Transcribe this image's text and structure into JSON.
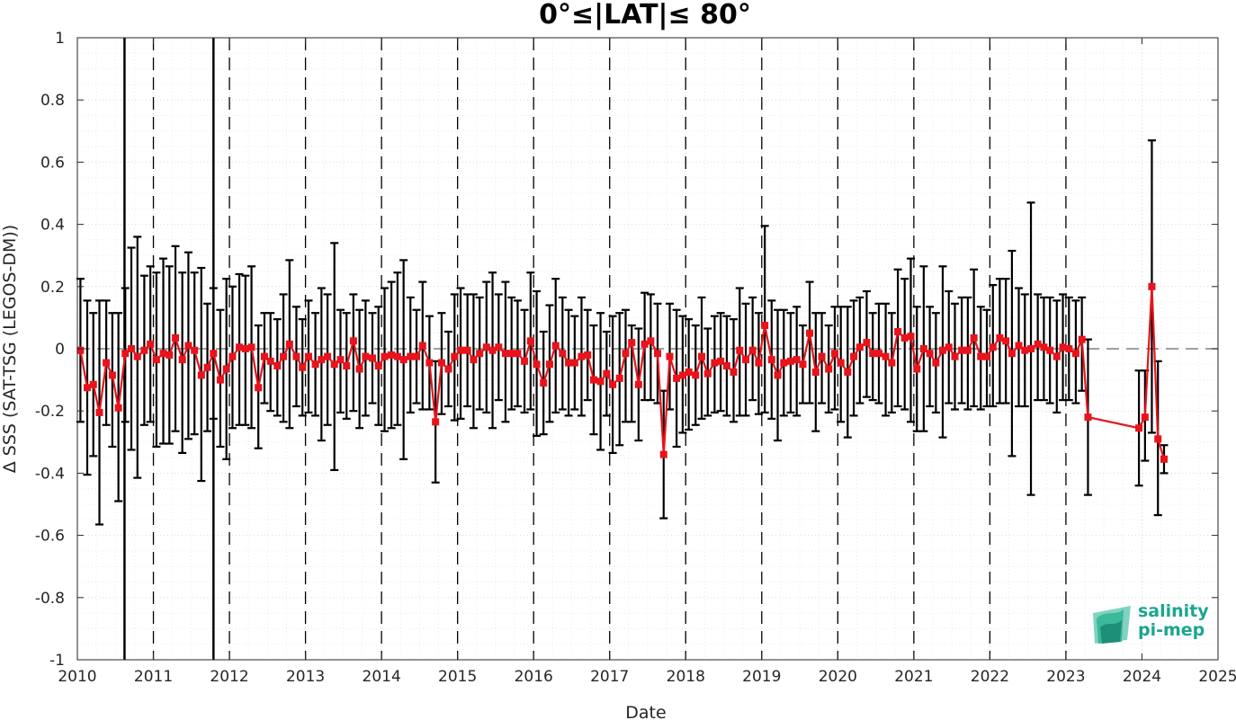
{
  "chart_data": {
    "type": "line",
    "title": "0°≤|LAT|≤ 80°",
    "xlabel": "Date",
    "ylabel": "Δ SSS (SAT-TSG (LEGOS-DM))",
    "xlim": [
      2010,
      2025
    ],
    "ylim": [
      -1,
      1
    ],
    "x_ticks": [
      "2010",
      "2011",
      "2012",
      "2013",
      "2014",
      "2015",
      "2016",
      "2017",
      "2018",
      "2019",
      "2020",
      "2021",
      "2022",
      "2023",
      "2024",
      "2025"
    ],
    "y_ticks": [
      "-1",
      "-0.8",
      "-0.6",
      "-0.4",
      "-0.2",
      "0",
      "0.2",
      "0.4",
      "0.6",
      "0.8",
      "1"
    ],
    "grid": true,
    "reference_line": 0,
    "solid_vertical_lines": [
      2010.62,
      2011.79
    ],
    "dashed_vertical_lines": [
      2011.0,
      2012.0,
      2013.0,
      2014.0,
      2015.0,
      2016.0,
      2017.0,
      2018.0,
      2019.0,
      2020.0,
      2021.0,
      2022.0,
      2023.0
    ],
    "colors": {
      "series": "#e8131b",
      "errorbar": "#000000",
      "reference": "#808080"
    },
    "series": [
      {
        "values": [
          [
            2010.04,
            -0.005,
            -0.235,
            0.225
          ],
          [
            2010.13,
            -0.125,
            -0.405,
            0.155
          ],
          [
            2010.21,
            -0.115,
            -0.345,
            0.115
          ],
          [
            2010.29,
            -0.205,
            -0.565,
            0.155
          ],
          [
            2010.38,
            -0.045,
            -0.245,
            0.155
          ],
          [
            2010.46,
            -0.085,
            -0.315,
            0.115
          ],
          [
            2010.54,
            -0.19,
            -0.49,
            0.115
          ],
          [
            2010.63,
            -0.015,
            -0.235,
            0.195
          ],
          [
            2010.71,
            0.0,
            -0.325,
            0.325
          ],
          [
            2010.79,
            -0.025,
            -0.415,
            0.36
          ],
          [
            2010.88,
            -0.005,
            -0.245,
            0.235
          ],
          [
            2010.96,
            0.015,
            -0.235,
            0.265
          ],
          [
            2011.04,
            -0.035,
            -0.315,
            0.245
          ],
          [
            2011.13,
            -0.015,
            -0.305,
            0.29
          ],
          [
            2011.21,
            -0.02,
            -0.305,
            0.265
          ],
          [
            2011.29,
            0.035,
            -0.265,
            0.33
          ],
          [
            2011.38,
            -0.035,
            -0.335,
            0.245
          ],
          [
            2011.46,
            0.01,
            -0.29,
            0.31
          ],
          [
            2011.54,
            -0.005,
            -0.275,
            0.245
          ],
          [
            2011.63,
            -0.085,
            -0.425,
            0.26
          ],
          [
            2011.71,
            -0.06,
            -0.265,
            0.145
          ],
          [
            2011.79,
            -0.015,
            -0.225,
            0.195
          ],
          [
            2011.88,
            -0.1,
            -0.315,
            0.125
          ],
          [
            2011.96,
            -0.065,
            -0.355,
            0.225
          ],
          [
            2012.04,
            -0.025,
            -0.255,
            0.2
          ],
          [
            2012.13,
            0.005,
            -0.245,
            0.24
          ],
          [
            2012.21,
            0.0,
            -0.245,
            0.235
          ],
          [
            2012.29,
            0.005,
            -0.255,
            0.265
          ],
          [
            2012.38,
            -0.125,
            -0.32,
            0.075
          ],
          [
            2012.46,
            -0.025,
            -0.175,
            0.115
          ],
          [
            2012.54,
            -0.04,
            -0.2,
            0.115
          ],
          [
            2012.63,
            -0.055,
            -0.215,
            0.095
          ],
          [
            2012.71,
            -0.025,
            -0.235,
            0.175
          ],
          [
            2012.79,
            0.015,
            -0.255,
            0.285
          ],
          [
            2012.88,
            -0.025,
            -0.185,
            0.135
          ],
          [
            2012.96,
            -0.06,
            -0.215,
            0.095
          ],
          [
            2013.04,
            -0.025,
            -0.205,
            0.155
          ],
          [
            2013.13,
            -0.05,
            -0.215,
            0.115
          ],
          [
            2013.21,
            -0.035,
            -0.295,
            0.195
          ],
          [
            2013.29,
            -0.025,
            -0.245,
            0.175
          ],
          [
            2013.38,
            -0.05,
            -0.39,
            0.34
          ],
          [
            2013.46,
            -0.035,
            -0.205,
            0.125
          ],
          [
            2013.54,
            -0.055,
            -0.225,
            0.115
          ],
          [
            2013.63,
            0.025,
            -0.2,
            0.175
          ],
          [
            2013.71,
            -0.065,
            -0.255,
            0.125
          ],
          [
            2013.79,
            -0.025,
            -0.215,
            0.155
          ],
          [
            2013.88,
            -0.03,
            -0.175,
            0.115
          ],
          [
            2013.96,
            -0.055,
            -0.245,
            0.135
          ],
          [
            2014.04,
            -0.025,
            -0.265,
            0.195
          ],
          [
            2014.13,
            -0.02,
            -0.255,
            0.215
          ],
          [
            2014.21,
            -0.025,
            -0.245,
            0.245
          ],
          [
            2014.29,
            -0.035,
            -0.355,
            0.285
          ],
          [
            2014.38,
            -0.025,
            -0.205,
            0.165
          ],
          [
            2014.46,
            -0.025,
            -0.175,
            0.125
          ],
          [
            2014.54,
            0.01,
            -0.195,
            0.215
          ],
          [
            2014.63,
            -0.045,
            -0.195,
            0.105
          ],
          [
            2014.71,
            -0.235,
            -0.43,
            -0.04
          ],
          [
            2014.79,
            -0.045,
            -0.21,
            0.115
          ],
          [
            2014.88,
            -0.065,
            -0.185,
            0.055
          ],
          [
            2014.96,
            -0.025,
            -0.23,
            0.175
          ],
          [
            2015.04,
            -0.005,
            -0.225,
            0.195
          ],
          [
            2015.13,
            -0.005,
            -0.185,
            0.175
          ],
          [
            2015.21,
            -0.035,
            -0.255,
            0.175
          ],
          [
            2015.29,
            -0.015,
            -0.195,
            0.165
          ],
          [
            2015.38,
            0.005,
            -0.205,
            0.215
          ],
          [
            2015.46,
            -0.005,
            -0.255,
            0.245
          ],
          [
            2015.54,
            0.005,
            -0.165,
            0.175
          ],
          [
            2015.63,
            -0.015,
            -0.235,
            0.215
          ],
          [
            2015.71,
            -0.015,
            -0.195,
            0.165
          ],
          [
            2015.79,
            -0.015,
            -0.185,
            0.155
          ],
          [
            2015.88,
            -0.04,
            -0.205,
            0.125
          ],
          [
            2015.96,
            0.025,
            -0.195,
            0.245
          ],
          [
            2016.04,
            -0.05,
            -0.28,
            0.185
          ],
          [
            2016.13,
            -0.11,
            -0.275,
            0.055
          ],
          [
            2016.21,
            -0.05,
            -0.235,
            0.14
          ],
          [
            2016.29,
            0.01,
            -0.205,
            0.225
          ],
          [
            2016.38,
            -0.015,
            -0.195,
            0.165
          ],
          [
            2016.46,
            -0.045,
            -0.215,
            0.125
          ],
          [
            2016.54,
            -0.045,
            -0.195,
            0.105
          ],
          [
            2016.63,
            -0.025,
            -0.215,
            0.165
          ],
          [
            2016.71,
            -0.02,
            -0.165,
            0.125
          ],
          [
            2016.79,
            -0.1,
            -0.275,
            0.075
          ],
          [
            2016.88,
            -0.105,
            -0.325,
            0.115
          ],
          [
            2016.96,
            -0.08,
            -0.215,
            0.055
          ],
          [
            2017.04,
            -0.115,
            -0.335,
            0.105
          ],
          [
            2017.13,
            -0.095,
            -0.31,
            0.115
          ],
          [
            2017.21,
            -0.015,
            -0.235,
            0.125
          ],
          [
            2017.29,
            0.02,
            -0.235,
            0.075
          ],
          [
            2017.38,
            -0.115,
            -0.295,
            0.065
          ],
          [
            2017.46,
            0.015,
            -0.165,
            0.18
          ],
          [
            2017.54,
            0.025,
            -0.165,
            0.175
          ],
          [
            2017.63,
            -0.015,
            -0.175,
            0.145
          ],
          [
            2017.71,
            -0.34,
            -0.545,
            -0.135
          ],
          [
            2017.79,
            -0.025,
            -0.195,
            0.145
          ],
          [
            2017.88,
            -0.095,
            -0.315,
            0.125
          ],
          [
            2017.96,
            -0.085,
            -0.27,
            0.105
          ],
          [
            2018.04,
            -0.075,
            -0.26,
            0.095
          ],
          [
            2018.13,
            -0.085,
            -0.245,
            0.075
          ],
          [
            2018.21,
            -0.025,
            -0.225,
            0.165
          ],
          [
            2018.29,
            -0.08,
            -0.215,
            0.065
          ],
          [
            2018.38,
            -0.045,
            -0.205,
            0.105
          ],
          [
            2018.46,
            -0.04,
            -0.2,
            0.115
          ],
          [
            2018.54,
            -0.055,
            -0.215,
            0.105
          ],
          [
            2018.63,
            -0.075,
            -0.235,
            0.095
          ],
          [
            2018.71,
            -0.005,
            -0.215,
            0.195
          ],
          [
            2018.79,
            -0.035,
            -0.215,
            0.145
          ],
          [
            2018.88,
            -0.005,
            -0.165,
            0.165
          ],
          [
            2018.96,
            -0.045,
            -0.21,
            0.115
          ],
          [
            2019.04,
            0.075,
            -0.205,
            0.395
          ],
          [
            2019.13,
            -0.035,
            -0.225,
            0.155
          ],
          [
            2019.21,
            -0.085,
            -0.295,
            0.125
          ],
          [
            2019.29,
            -0.045,
            -0.215,
            0.125
          ],
          [
            2019.38,
            -0.04,
            -0.205,
            0.115
          ],
          [
            2019.46,
            -0.035,
            -0.215,
            0.135
          ],
          [
            2019.54,
            -0.05,
            -0.175,
            0.075
          ],
          [
            2019.63,
            0.05,
            -0.175,
            0.215
          ],
          [
            2019.71,
            -0.075,
            -0.265,
            0.115
          ],
          [
            2019.79,
            -0.025,
            -0.175,
            0.115
          ],
          [
            2019.88,
            -0.065,
            -0.205,
            0.075
          ],
          [
            2019.96,
            -0.015,
            -0.195,
            0.135
          ],
          [
            2020.04,
            -0.045,
            -0.235,
            0.135
          ],
          [
            2020.13,
            -0.075,
            -0.285,
            0.135
          ],
          [
            2020.21,
            -0.025,
            -0.215,
            0.155
          ],
          [
            2020.29,
            0.005,
            -0.175,
            0.165
          ],
          [
            2020.38,
            0.02,
            -0.155,
            0.185
          ],
          [
            2020.46,
            -0.015,
            -0.165,
            0.115
          ],
          [
            2020.54,
            -0.015,
            -0.175,
            0.145
          ],
          [
            2020.63,
            -0.025,
            -0.215,
            0.145
          ],
          [
            2020.71,
            -0.045,
            -0.205,
            0.115
          ],
          [
            2020.79,
            0.055,
            -0.185,
            0.255
          ],
          [
            2020.88,
            0.035,
            -0.195,
            0.225
          ],
          [
            2020.96,
            0.04,
            -0.235,
            0.29
          ],
          [
            2021.04,
            -0.065,
            -0.265,
            0.135
          ],
          [
            2021.13,
            0.0,
            -0.265,
            0.265
          ],
          [
            2021.21,
            -0.015,
            -0.185,
            0.135
          ],
          [
            2021.29,
            -0.045,
            -0.205,
            0.115
          ],
          [
            2021.38,
            -0.005,
            -0.285,
            0.265
          ],
          [
            2021.46,
            0.005,
            -0.175,
            0.185
          ],
          [
            2021.54,
            -0.025,
            -0.195,
            0.145
          ],
          [
            2021.63,
            -0.005,
            -0.175,
            0.165
          ],
          [
            2021.71,
            -0.005,
            -0.195,
            0.165
          ],
          [
            2021.79,
            0.035,
            -0.185,
            0.255
          ],
          [
            2021.88,
            -0.025,
            -0.195,
            0.135
          ],
          [
            2021.96,
            -0.025,
            -0.185,
            0.125
          ],
          [
            2022.04,
            0.005,
            -0.185,
            0.205
          ],
          [
            2022.13,
            0.035,
            -0.175,
            0.225
          ],
          [
            2022.21,
            0.025,
            -0.175,
            0.225
          ],
          [
            2022.29,
            -0.015,
            -0.345,
            0.315
          ],
          [
            2022.38,
            0.01,
            -0.185,
            0.195
          ],
          [
            2022.46,
            -0.005,
            -0.185,
            0.175
          ],
          [
            2022.54,
            0.0,
            -0.47,
            0.47
          ],
          [
            2022.63,
            0.015,
            -0.165,
            0.175
          ],
          [
            2022.71,
            0.005,
            -0.165,
            0.165
          ],
          [
            2022.79,
            -0.005,
            -0.175,
            0.165
          ],
          [
            2022.88,
            -0.025,
            -0.205,
            0.155
          ],
          [
            2022.96,
            0.005,
            -0.165,
            0.175
          ],
          [
            2023.04,
            0.0,
            -0.165,
            0.165
          ],
          [
            2023.13,
            -0.015,
            -0.175,
            0.155
          ],
          [
            2023.21,
            0.03,
            -0.135,
            0.165
          ],
          [
            2023.29,
            -0.22,
            -0.47,
            0.03
          ],
          [
            2023.96,
            -0.255,
            -0.44,
            -0.07
          ],
          [
            2024.04,
            -0.22,
            -0.36,
            -0.07
          ],
          [
            2024.13,
            0.2,
            -0.27,
            0.67
          ],
          [
            2024.21,
            -0.29,
            -0.535,
            -0.04
          ],
          [
            2024.29,
            -0.355,
            -0.4,
            -0.31
          ]
        ]
      }
    ],
    "point_format": [
      "date_decimal_year",
      "value",
      "lower",
      "upper"
    ]
  },
  "logo": {
    "line1": "salinity",
    "line2": "pi-mep",
    "colors": {
      "text": "#1ba68f",
      "mark_light": "#7fd3c0",
      "mark_mid": "#3cb89b",
      "mark_dark": "#1d8f76"
    }
  }
}
